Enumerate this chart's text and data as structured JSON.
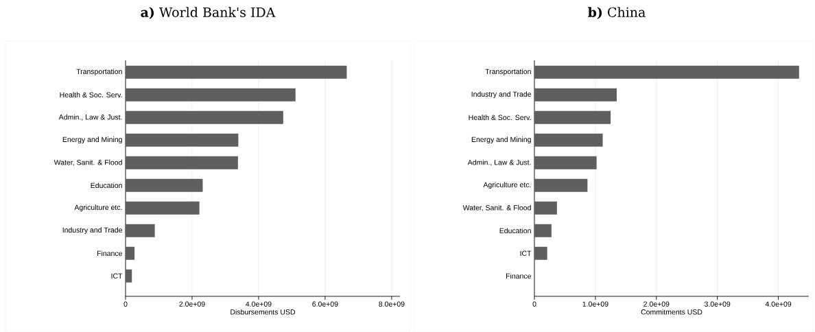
{
  "chart_data": [
    {
      "type": "bar",
      "orientation": "horizontal",
      "title": "**a)** World Bank's IDA",
      "xlabel": "Disbursements USD",
      "categories": [
        "Transportation",
        "Health & Soc. Serv.",
        "Admin., Law & Just.",
        "Energy and Mining",
        "Water, Sanit. & Flood",
        "Education",
        "Agriculture etc.",
        "Industry and Trade",
        "Finance",
        "ICT"
      ],
      "values": [
        6650000000.0,
        5110000000.0,
        4740000000.0,
        3390000000.0,
        3380000000.0,
        2320000000.0,
        2220000000.0,
        880000000.0,
        270000000.0,
        190000000.0
      ],
      "color": "#5f5f5f",
      "xlim": [
        0,
        8250000000.0
      ],
      "xticks": [
        0,
        {
          "value": 2000000000.0,
          "label": "2.0e+09"
        },
        {
          "value": 4000000000.0,
          "label": "4.0e+09"
        },
        {
          "value": 6000000000.0,
          "label": "6.0e+09"
        },
        {
          "value": 8000000000.0,
          "label": "8.0e+09"
        }
      ],
      "grid": "x"
    },
    {
      "type": "bar",
      "orientation": "horizontal",
      "title": "**b)** China",
      "xlabel": "Commitments USD",
      "categories": [
        "Transportation",
        "Industry and Trade",
        "Health & Soc. Serv.",
        "Energy and Mining",
        "Admin., Law & Just.",
        "Agriculture etc.",
        "Water, Sanit. & Flood",
        "Education",
        "ICT",
        "Finance"
      ],
      "values": [
        4340000000.0,
        1350000000.0,
        1250000000.0,
        1120000000.0,
        1020000000.0,
        870000000.0,
        370000000.0,
        280000000.0,
        210000000.0,
        0
      ],
      "color": "#5f5f5f",
      "xlim": [
        0,
        4500000000.0
      ],
      "xticks": [
        0,
        {
          "value": 1000000000.0,
          "label": "1.0e+09"
        },
        {
          "value": 2000000000.0,
          "label": "2.0e+09"
        },
        {
          "value": 3000000000.0,
          "label": "3.0e+09"
        },
        {
          "value": 4000000000.0,
          "label": "4.0e+09"
        }
      ],
      "grid": "x"
    }
  ]
}
